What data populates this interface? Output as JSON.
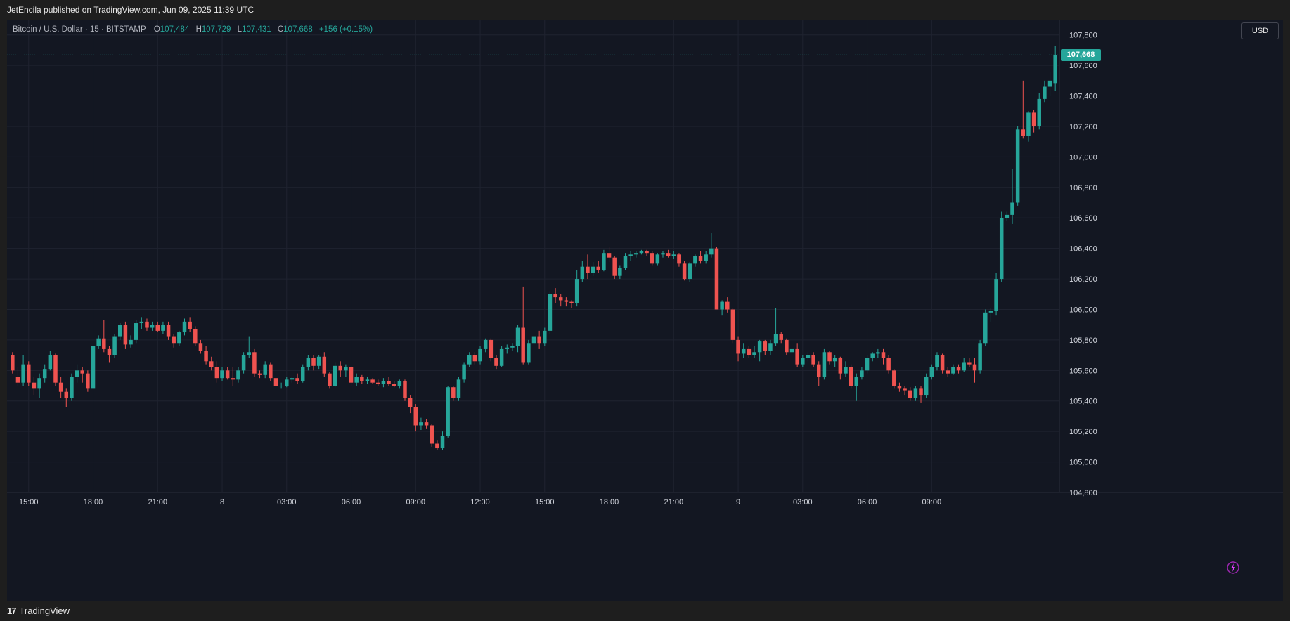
{
  "header": {
    "publisher_text": "JetEncila published on TradingView.com, Jun 09, 2025 11:39 UTC"
  },
  "footer": {
    "brand_logo": "17",
    "brand_name": "TradingView"
  },
  "symbol": {
    "name": "Bitcoin / U.S. Dollar",
    "interval": "15",
    "exchange": "BITSTAMP",
    "open_label": "O",
    "open": "107,484",
    "high_label": "H",
    "high": "107,729",
    "low_label": "L",
    "low": "107,431",
    "close_label": "C",
    "close": "107,668",
    "change": "+156 (+0.15%)"
  },
  "currency": "USD",
  "last_price_label": "107,668",
  "colors": {
    "up": "#26a69a",
    "down": "#ef5350",
    "background": "#131722",
    "grid": "#1f2330"
  },
  "icons": {
    "bottom_right": "lightning-spark-icon",
    "brand": "tradingview-logo-icon"
  },
  "chart_data": {
    "type": "candlestick",
    "y_ticks": [
      "107,800",
      "107,600",
      "107,400",
      "107,200",
      "107,000",
      "106,800",
      "106,600",
      "106,400",
      "106,200",
      "106,000",
      "105,800",
      "105,600",
      "105,400",
      "105,200",
      "105,000",
      "104,800"
    ],
    "ylim": [
      104800,
      107900
    ],
    "x_ticks": [
      {
        "label": "15:00",
        "index": 3
      },
      {
        "label": "18:00",
        "index": 15
      },
      {
        "label": "21:00",
        "index": 27
      },
      {
        "label": "8",
        "index": 39
      },
      {
        "label": "03:00",
        "index": 51
      },
      {
        "label": "06:00",
        "index": 63
      },
      {
        "label": "09:00",
        "index": 75
      },
      {
        "label": "12:00",
        "index": 87
      },
      {
        "label": "15:00",
        "index": 99
      },
      {
        "label": "18:00",
        "index": 111
      },
      {
        "label": "21:00",
        "index": 123
      },
      {
        "label": "9",
        "index": 135
      },
      {
        "label": "03:00",
        "index": 147
      },
      {
        "label": "06:00",
        "index": 159
      },
      {
        "label": "09:00",
        "index": 171
      }
    ],
    "last_price": 107668,
    "candles": [
      [
        105700,
        105720,
        105580,
        105600
      ],
      [
        105560,
        105620,
        105500,
        105520
      ],
      [
        105520,
        105700,
        105500,
        105640
      ],
      [
        105640,
        105660,
        105500,
        105520
      ],
      [
        105520,
        105560,
        105440,
        105480
      ],
      [
        105480,
        105580,
        105420,
        105550
      ],
      [
        105550,
        105640,
        105520,
        105610
      ],
      [
        105610,
        105730,
        105600,
        105700
      ],
      [
        105700,
        105710,
        105500,
        105520
      ],
      [
        105520,
        105560,
        105420,
        105460
      ],
      [
        105460,
        105480,
        105360,
        105420
      ],
      [
        105420,
        105580,
        105400,
        105560
      ],
      [
        105560,
        105640,
        105520,
        105600
      ],
      [
        105600,
        105620,
        105520,
        105580
      ],
      [
        105580,
        105600,
        105460,
        105480
      ],
      [
        105480,
        105780,
        105460,
        105760
      ],
      [
        105760,
        105830,
        105740,
        105810
      ],
      [
        105810,
        105930,
        105720,
        105740
      ],
      [
        105740,
        105760,
        105650,
        105700
      ],
      [
        105700,
        105840,
        105680,
        105820
      ],
      [
        105820,
        105910,
        105800,
        105900
      ],
      [
        105900,
        105920,
        105740,
        105770
      ],
      [
        105770,
        105830,
        105750,
        105800
      ],
      [
        105800,
        105930,
        105780,
        105910
      ],
      [
        105910,
        105950,
        105870,
        105920
      ],
      [
        105920,
        105940,
        105860,
        105880
      ],
      [
        105880,
        105920,
        105860,
        105900
      ],
      [
        105900,
        105920,
        105850,
        105860
      ],
      [
        105860,
        105920,
        105840,
        105900
      ],
      [
        105900,
        105920,
        105800,
        105820
      ],
      [
        105820,
        105840,
        105750,
        105780
      ],
      [
        105780,
        105860,
        105760,
        105850
      ],
      [
        105850,
        105940,
        105830,
        105920
      ],
      [
        105920,
        105950,
        105850,
        105870
      ],
      [
        105870,
        105890,
        105760,
        105780
      ],
      [
        105780,
        105800,
        105710,
        105730
      ],
      [
        105730,
        105760,
        105640,
        105660
      ],
      [
        105660,
        105690,
        105600,
        105620
      ],
      [
        105620,
        105660,
        105520,
        105550
      ],
      [
        105550,
        105620,
        105530,
        105600
      ],
      [
        105600,
        105620,
        105540,
        105550
      ],
      [
        105550,
        105620,
        105500,
        105540
      ],
      [
        105540,
        105620,
        105520,
        105600
      ],
      [
        105600,
        105720,
        105580,
        105700
      ],
      [
        105700,
        105820,
        105680,
        105720
      ],
      [
        105720,
        105740,
        105560,
        105580
      ],
      [
        105580,
        105600,
        105550,
        105570
      ],
      [
        105570,
        105660,
        105550,
        105640
      ],
      [
        105640,
        105650,
        105530,
        105550
      ],
      [
        105550,
        105560,
        105480,
        105500
      ],
      [
        105500,
        105520,
        105480,
        105500
      ],
      [
        105500,
        105560,
        105490,
        105540
      ],
      [
        105540,
        105560,
        105520,
        105550
      ],
      [
        105550,
        105580,
        105510,
        105530
      ],
      [
        105530,
        105640,
        105520,
        105620
      ],
      [
        105620,
        105700,
        105600,
        105680
      ],
      [
        105680,
        105700,
        105600,
        105630
      ],
      [
        105630,
        105700,
        105610,
        105690
      ],
      [
        105690,
        105720,
        105560,
        105580
      ],
      [
        105580,
        105590,
        105480,
        105500
      ],
      [
        105500,
        105650,
        105490,
        105630
      ],
      [
        105630,
        105660,
        105560,
        105600
      ],
      [
        105600,
        105640,
        105560,
        105620
      ],
      [
        105620,
        105630,
        105500,
        105520
      ],
      [
        105520,
        105580,
        105500,
        105560
      ],
      [
        105560,
        105570,
        105510,
        105530
      ],
      [
        105530,
        105560,
        105510,
        105540
      ],
      [
        105540,
        105550,
        105510,
        105520
      ],
      [
        105520,
        105540,
        105500,
        105510
      ],
      [
        105510,
        105550,
        105490,
        105530
      ],
      [
        105530,
        105560,
        105500,
        105510
      ],
      [
        105510,
        105530,
        105490,
        105500
      ],
      [
        105500,
        105540,
        105480,
        105530
      ],
      [
        105530,
        105540,
        105400,
        105420
      ],
      [
        105420,
        105440,
        105320,
        105360
      ],
      [
        105360,
        105380,
        105200,
        105240
      ],
      [
        105240,
        105290,
        105210,
        105260
      ],
      [
        105260,
        105280,
        105220,
        105240
      ],
      [
        105240,
        105250,
        105100,
        105120
      ],
      [
        105120,
        105140,
        105080,
        105090
      ],
      [
        105090,
        105200,
        105080,
        105170
      ],
      [
        105170,
        105500,
        105160,
        105490
      ],
      [
        105490,
        105500,
        105400,
        105420
      ],
      [
        105420,
        105560,
        105400,
        105540
      ],
      [
        105540,
        105650,
        105520,
        105640
      ],
      [
        105640,
        105720,
        105620,
        105700
      ],
      [
        105700,
        105720,
        105640,
        105660
      ],
      [
        105660,
        105760,
        105640,
        105740
      ],
      [
        105740,
        105810,
        105720,
        105800
      ],
      [
        105800,
        105810,
        105660,
        105680
      ],
      [
        105680,
        105700,
        105610,
        105630
      ],
      [
        105630,
        105760,
        105620,
        105740
      ],
      [
        105740,
        105770,
        105710,
        105750
      ],
      [
        105750,
        105780,
        105730,
        105760
      ],
      [
        105760,
        105900,
        105720,
        105880
      ],
      [
        105880,
        106150,
        105640,
        105650
      ],
      [
        105650,
        105800,
        105640,
        105780
      ],
      [
        105780,
        105840,
        105760,
        105820
      ],
      [
        105820,
        105860,
        105740,
        105780
      ],
      [
        105780,
        105880,
        105760,
        105860
      ],
      [
        105860,
        106120,
        105840,
        106100
      ],
      [
        106100,
        106140,
        106040,
        106080
      ],
      [
        106080,
        106100,
        106020,
        106060
      ],
      [
        106060,
        106080,
        106020,
        106050
      ],
      [
        106050,
        106060,
        106010,
        106040
      ],
      [
        106040,
        106260,
        106020,
        106200
      ],
      [
        106200,
        106320,
        106180,
        106280
      ],
      [
        106280,
        106360,
        106200,
        106240
      ],
      [
        106240,
        106310,
        106220,
        106280
      ],
      [
        106280,
        106320,
        106240,
        106260
      ],
      [
        106260,
        106390,
        106250,
        106370
      ],
      [
        106370,
        106410,
        106310,
        106340
      ],
      [
        106340,
        106350,
        106200,
        106220
      ],
      [
        106220,
        106290,
        106200,
        106270
      ],
      [
        106270,
        106370,
        106260,
        106350
      ],
      [
        106350,
        106380,
        106320,
        106360
      ],
      [
        106360,
        106380,
        106340,
        106370
      ],
      [
        106370,
        106390,
        106360,
        106380
      ],
      [
        106380,
        106390,
        106350,
        106370
      ],
      [
        106370,
        106380,
        106290,
        106300
      ],
      [
        106300,
        106370,
        106290,
        106360
      ],
      [
        106360,
        106380,
        106340,
        106370
      ],
      [
        106370,
        106390,
        106340,
        106350
      ],
      [
        106350,
        106380,
        106330,
        106360
      ],
      [
        106360,
        106370,
        106280,
        106300
      ],
      [
        106300,
        106320,
        106190,
        106200
      ],
      [
        106200,
        106310,
        106180,
        106300
      ],
      [
        106300,
        106360,
        106280,
        106350
      ],
      [
        106350,
        106380,
        106300,
        106320
      ],
      [
        106320,
        106380,
        106300,
        106360
      ],
      [
        106360,
        106500,
        106340,
        106400
      ],
      [
        106400,
        106410,
        106000,
        106000
      ],
      [
        106000,
        106060,
        105960,
        106050
      ],
      [
        106050,
        106080,
        105980,
        106000
      ],
      [
        106000,
        106010,
        105780,
        105800
      ],
      [
        105800,
        105820,
        105660,
        105710
      ],
      [
        105710,
        105780,
        105680,
        105740
      ],
      [
        105740,
        105760,
        105680,
        105700
      ],
      [
        105700,
        105760,
        105680,
        105720
      ],
      [
        105720,
        105800,
        105660,
        105790
      ],
      [
        105790,
        105800,
        105700,
        105730
      ],
      [
        105730,
        105800,
        105700,
        105780
      ],
      [
        105780,
        106010,
        105760,
        105840
      ],
      [
        105840,
        105850,
        105780,
        105800
      ],
      [
        105800,
        105810,
        105700,
        105720
      ],
      [
        105720,
        105760,
        105700,
        105740
      ],
      [
        105740,
        105780,
        105620,
        105640
      ],
      [
        105640,
        105700,
        105620,
        105680
      ],
      [
        105680,
        105720,
        105660,
        105700
      ],
      [
        105700,
        105720,
        105620,
        105640
      ],
      [
        105640,
        105660,
        105500,
        105560
      ],
      [
        105560,
        105740,
        105540,
        105720
      ],
      [
        105720,
        105730,
        105640,
        105660
      ],
      [
        105660,
        105700,
        105620,
        105680
      ],
      [
        105680,
        105690,
        105540,
        105580
      ],
      [
        105580,
        105660,
        105560,
        105620
      ],
      [
        105620,
        105640,
        105480,
        105500
      ],
      [
        105500,
        105580,
        105400,
        105560
      ],
      [
        105560,
        105620,
        105540,
        105600
      ],
      [
        105600,
        105700,
        105580,
        105680
      ],
      [
        105680,
        105720,
        105660,
        105710
      ],
      [
        105710,
        105740,
        105680,
        105720
      ],
      [
        105720,
        105740,
        105640,
        105680
      ],
      [
        105680,
        105700,
        105580,
        105600
      ],
      [
        105600,
        105610,
        105480,
        105500
      ],
      [
        105500,
        105520,
        105460,
        105480
      ],
      [
        105480,
        105500,
        105440,
        105470
      ],
      [
        105470,
        105490,
        105400,
        105420
      ],
      [
        105420,
        105500,
        105400,
        105480
      ],
      [
        105480,
        105500,
        105390,
        105440
      ],
      [
        105440,
        105580,
        105420,
        105560
      ],
      [
        105560,
        105640,
        105540,
        105620
      ],
      [
        105620,
        105720,
        105600,
        105700
      ],
      [
        105700,
        105710,
        105580,
        105600
      ],
      [
        105600,
        105620,
        105560,
        105580
      ],
      [
        105580,
        105640,
        105570,
        105620
      ],
      [
        105620,
        105640,
        105580,
        105600
      ],
      [
        105600,
        105680,
        105590,
        105650
      ],
      [
        105650,
        105680,
        105620,
        105640
      ],
      [
        105640,
        105680,
        105520,
        105600
      ],
      [
        105600,
        105800,
        105580,
        105780
      ],
      [
        105780,
        106000,
        105760,
        105980
      ],
      [
        105980,
        106010,
        105920,
        105990
      ],
      [
        105990,
        106240,
        105960,
        106200
      ],
      [
        106200,
        106640,
        106180,
        106600
      ],
      [
        106600,
        106640,
        106580,
        106620
      ],
      [
        106620,
        106920,
        106560,
        106700
      ],
      [
        106700,
        107200,
        106680,
        107180
      ],
      [
        107180,
        107500,
        107120,
        107140
      ],
      [
        107140,
        107300,
        107100,
        107290
      ],
      [
        107290,
        107310,
        107160,
        107200
      ],
      [
        107200,
        107420,
        107180,
        107380
      ],
      [
        107380,
        107500,
        107360,
        107460
      ],
      [
        107460,
        107560,
        107400,
        107500
      ],
      [
        107484,
        107729,
        107431,
        107668
      ]
    ]
  }
}
